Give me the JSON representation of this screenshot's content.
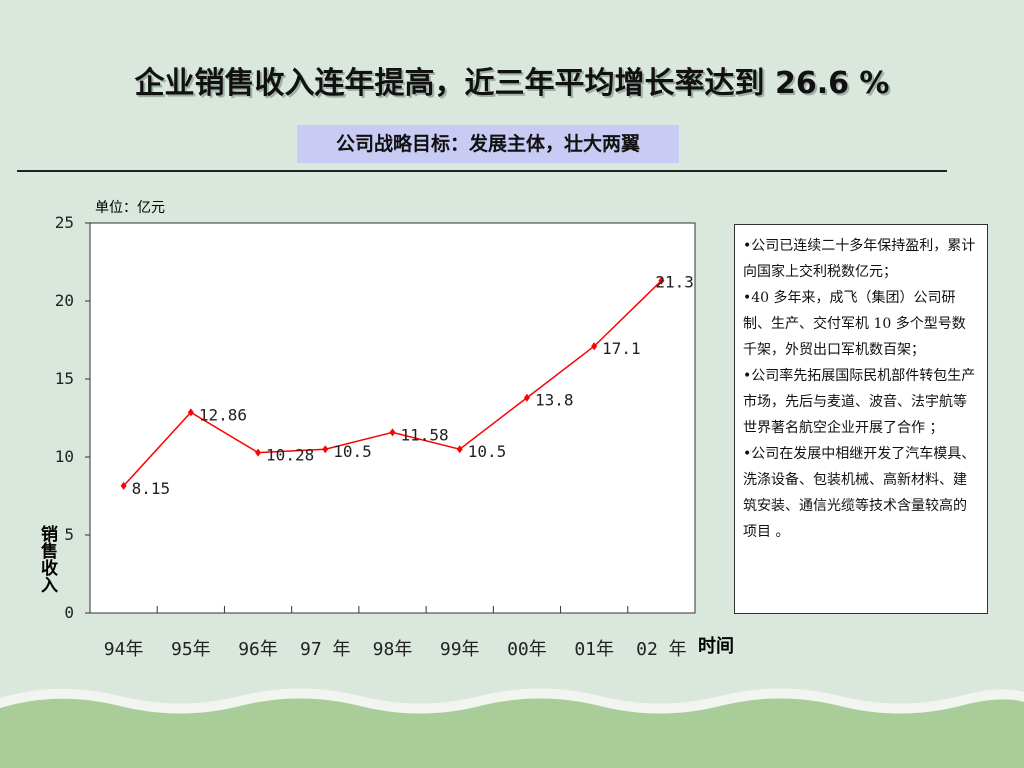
{
  "slide": {
    "title": "企业销售收入连年提高，近三年平均增长率达到 26.6 %",
    "subtitle": "公司战略目标：发展主体，壮大两翼"
  },
  "chart_data": {
    "type": "line",
    "unit_label": "单位：亿元",
    "ylabel": "销售收入",
    "xlabel": "时间",
    "ylim": [
      0,
      25
    ],
    "yticks": [
      0,
      5,
      10,
      15,
      20,
      25
    ],
    "categories": [
      "94年",
      "95年",
      "96年",
      "97 年",
      "98年",
      "99年",
      "00年",
      "01年",
      "02 年"
    ],
    "values": [
      8.15,
      12.86,
      10.28,
      10.5,
      11.58,
      10.5,
      13.8,
      17.1,
      21.3
    ],
    "data_labels": [
      "8.15",
      "12.86",
      "10.28",
      "10.5",
      "11.58",
      "10.5",
      "13.8",
      "17.1",
      "21.3"
    ],
    "line_color": "#ff0000",
    "marker_color": "#ff0000"
  },
  "info": {
    "items": [
      "•公司已连续二十多年保持盈利，累计向国家上交利税数亿元；",
      "•40 多年来，成飞（集团）公司研制、生产、交付军机 10 多个型号数千架，外贸出口军机数百架；",
      "•公司率先拓展国际民机部件转包生产市场，先后与麦道、波音、法宇航等世界著名航空企业开展了合作 ；",
      "•公司在发展中相继开发了汽车模具、洗涤设备、包装机械、高新材料、建筑安装、通信光缆等技术含量较高的项目 。"
    ]
  }
}
